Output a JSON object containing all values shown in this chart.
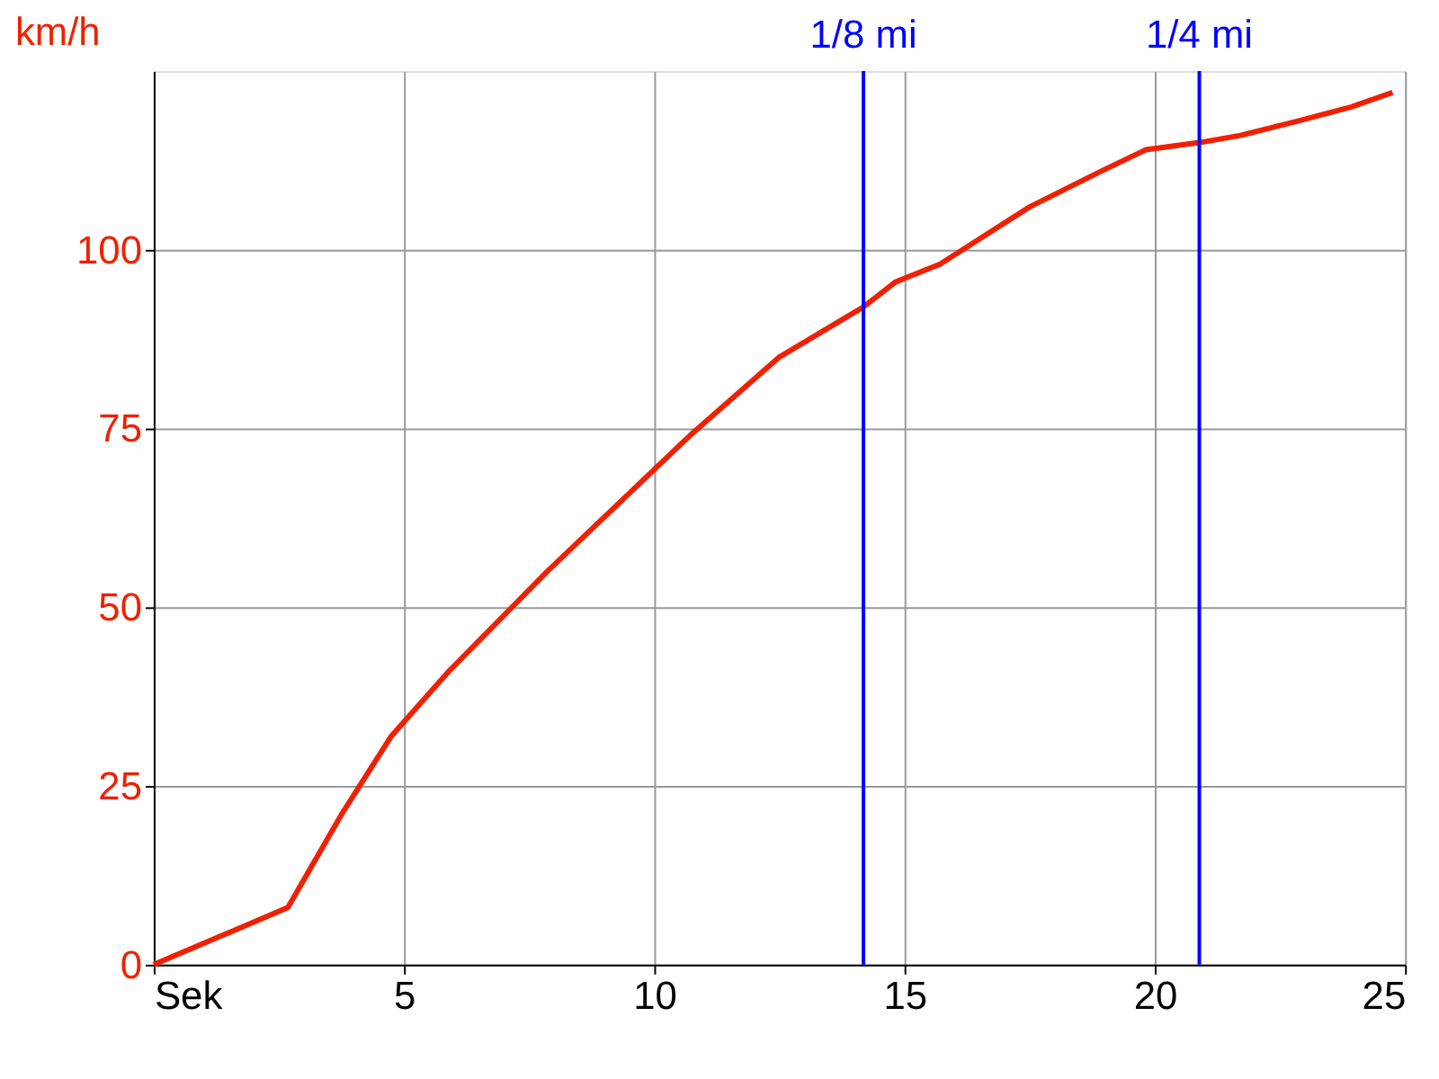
{
  "chart_data": {
    "type": "line",
    "ylabel": "km/h",
    "x": [
      0,
      2.68,
      3.75,
      4.75,
      5.89,
      7.86,
      10.71,
      12.5,
      14.18,
      14.82,
      15.71,
      17.5,
      18.93,
      19.82,
      20.89,
      21.71,
      22.86,
      23.93,
      24.75
    ],
    "series": [
      {
        "color": "#f02000",
        "values": [
          0,
          8,
          21,
          32,
          41,
          55,
          74,
          85,
          92,
          95.5,
          98,
          106,
          111,
          114,
          115,
          116,
          118,
          120,
          122
        ]
      }
    ],
    "xlim": [
      0,
      25
    ],
    "xticks": [
      {
        "value": 0,
        "label": "Sek"
      },
      5,
      10,
      15,
      20,
      25
    ],
    "ylim": [
      0,
      125
    ],
    "yticks": [
      0,
      25,
      50,
      75,
      100
    ],
    "ref_lines": [
      {
        "axis": "x",
        "value": 14.18,
        "label": "1/8 mi",
        "color": "#0000ff"
      },
      {
        "axis": "x",
        "value": 20.89,
        "label": "1/4 mi",
        "color": "#0000ff"
      }
    ],
    "grid": true,
    "marker": "none",
    "line_style": "solid"
  }
}
